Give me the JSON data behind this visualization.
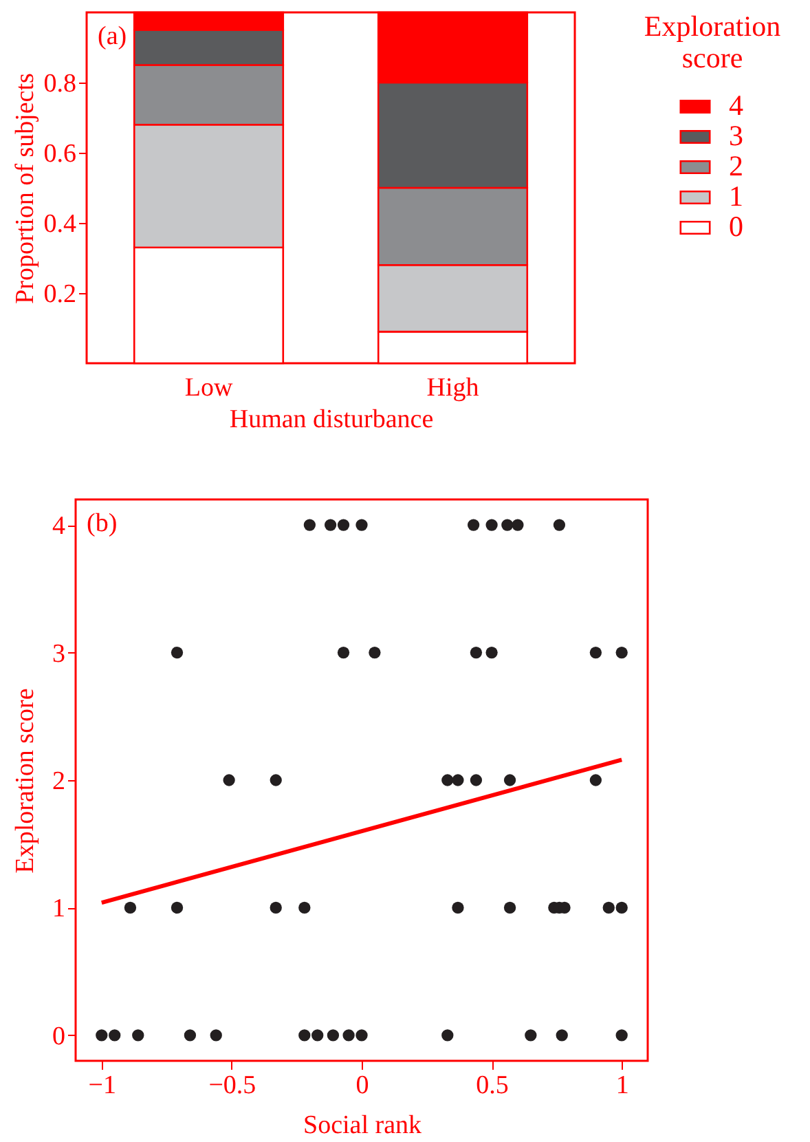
{
  "chart_data": [
    {
      "type": "bar",
      "stacked": true,
      "categories": [
        "Low",
        "High"
      ],
      "xlabel": "Human disturbance",
      "ylabel": "Proportion of subjects",
      "legend_title": "Exploration score",
      "legend": "top right",
      "ylim": [
        0,
        1
      ],
      "yticks": [
        0.2,
        0.4,
        0.6,
        0.8
      ],
      "annotations": [
        "(a)"
      ],
      "series": [
        {
          "name": "0",
          "color": "#ffffff",
          "values": [
            0.33,
            0.09
          ]
        },
        {
          "name": "1",
          "color": "#c6c7c9",
          "values": [
            0.35,
            0.19
          ]
        },
        {
          "name": "2",
          "color": "#8c8d90",
          "values": [
            0.17,
            0.22
          ]
        },
        {
          "name": "3",
          "color": "#5a5b5d",
          "values": [
            0.1,
            0.3
          ]
        },
        {
          "name": "4",
          "color": "#ff0000",
          "values": [
            0.05,
            0.2
          ]
        }
      ]
    },
    {
      "type": "scatter",
      "xlabel": "Social rank",
      "ylabel": "Exploration score",
      "xlim": [
        -1.1,
        1.1
      ],
      "xticks": [
        -1,
        -0.5,
        0,
        0.5,
        1
      ],
      "ylim": [
        -0.2,
        4.2
      ],
      "yticks": [
        0,
        1,
        2,
        3,
        4
      ],
      "annotations": [
        "(b)"
      ],
      "series": [
        {
          "color": "#231f20",
          "marker": "circle",
          "x": [
            -0.2,
            -0.12,
            -0.07,
            0.0,
            0.43,
            0.5,
            0.56,
            0.6,
            0.76,
            -0.71,
            -0.07,
            0.05,
            0.44,
            0.5,
            0.9,
            1.0,
            -0.51,
            -0.33,
            0.33,
            0.37,
            0.44,
            0.57,
            0.9,
            -0.89,
            -0.71,
            -0.33,
            -0.22,
            0.37,
            0.57,
            0.74,
            0.76,
            0.78,
            0.95,
            1.0,
            -1.0,
            -0.95,
            -0.86,
            -0.66,
            -0.56,
            -0.22,
            -0.17,
            -0.11,
            -0.05,
            0.0,
            0.33,
            0.65,
            0.77,
            1.0
          ],
          "values": [
            4,
            4,
            4,
            4,
            4,
            4,
            4,
            4,
            4,
            3,
            3,
            3,
            3,
            3,
            3,
            3,
            2,
            2,
            2,
            2,
            2,
            2,
            2,
            1,
            1,
            1,
            1,
            1,
            1,
            1,
            1,
            1,
            1,
            1,
            0,
            0,
            0,
            0,
            0,
            0,
            0,
            0,
            0,
            0,
            0,
            0,
            0,
            0
          ]
        },
        {
          "type": "line",
          "color": "#ff0000",
          "x": [
            -1,
            1
          ],
          "values": [
            1.04,
            2.16
          ]
        }
      ]
    }
  ]
}
